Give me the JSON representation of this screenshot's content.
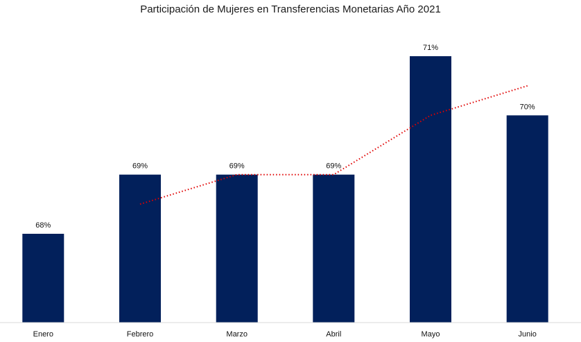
{
  "chart_data": {
    "type": "bar",
    "title": "Participación de Mujeres en Transferencias Monetarias Año 2021",
    "categories": [
      "Enero",
      "Febrero",
      "Marzo",
      "Abril",
      "Mayo",
      "Junio"
    ],
    "values": [
      68,
      69,
      69,
      69,
      71,
      70
    ],
    "data_labels": [
      "68%",
      "69%",
      "69%",
      "69%",
      "71%",
      "70%"
    ],
    "trendline": {
      "type": "moving-average",
      "period": 2,
      "style": "dotted",
      "values": [
        68.5,
        69,
        69,
        70,
        70.5
      ]
    },
    "ylim": [
      66.5,
      71
    ],
    "grid": false,
    "legend": "none",
    "colors": {
      "bar": "#02205b",
      "trendline": "#e00000",
      "axis": "#d9d9d9"
    }
  }
}
